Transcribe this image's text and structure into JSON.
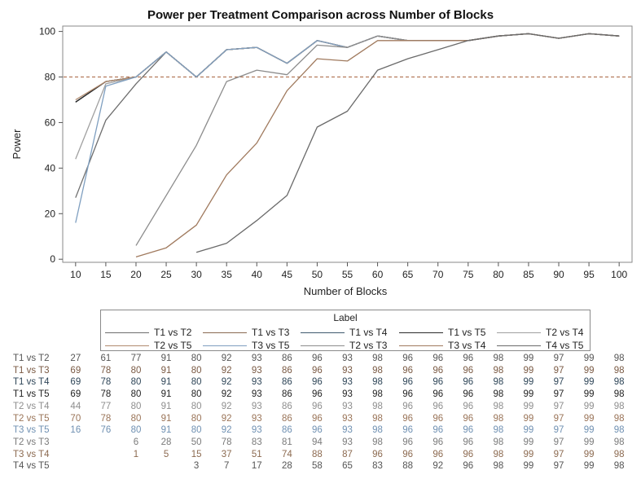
{
  "chart_data": {
    "type": "line",
    "title": "Power per Treatment Comparison across Number of Blocks",
    "xlabel": "Number of Blocks",
    "ylabel": "Power",
    "x": [
      10,
      15,
      20,
      25,
      30,
      35,
      40,
      45,
      50,
      55,
      60,
      65,
      70,
      75,
      80,
      85,
      90,
      95,
      100
    ],
    "xlim": [
      8,
      102
    ],
    "ylim": [
      -1,
      102
    ],
    "yticks": [
      0,
      20,
      40,
      60,
      80,
      100
    ],
    "reference_line": {
      "y": 80,
      "color": "#b47a5a",
      "style": "dashed"
    },
    "legend": {
      "title": "Label",
      "placement": "bottom"
    },
    "series": [
      {
        "name": "T1 vs T2",
        "color": "#6e6e6e",
        "values": [
          27,
          61,
          77,
          91,
          80,
          92,
          93,
          86,
          96,
          93,
          98,
          96,
          96,
          96,
          98,
          99,
          97,
          99,
          98
        ]
      },
      {
        "name": "T1 vs T3",
        "color": "#8a6a52",
        "values": [
          69,
          78,
          80,
          91,
          80,
          92,
          93,
          86,
          96,
          93,
          98,
          96,
          96,
          96,
          98,
          99,
          97,
          99,
          98
        ]
      },
      {
        "name": "T1 vs T4",
        "color": "#3f5a6e",
        "values": [
          69,
          78,
          80,
          91,
          80,
          92,
          93,
          86,
          96,
          93,
          98,
          96,
          96,
          96,
          98,
          99,
          97,
          99,
          98
        ]
      },
      {
        "name": "T1 vs T5",
        "color": "#2a2a2a",
        "values": [
          69,
          78,
          80,
          91,
          80,
          92,
          93,
          86,
          96,
          93,
          98,
          96,
          96,
          96,
          98,
          99,
          97,
          99,
          98
        ]
      },
      {
        "name": "T2 vs T4",
        "color": "#a0a0a0",
        "values": [
          44,
          77,
          80,
          91,
          80,
          92,
          93,
          86,
          96,
          93,
          98,
          96,
          96,
          96,
          98,
          99,
          97,
          99,
          98
        ]
      },
      {
        "name": "T2 vs T5",
        "color": "#b08a6e",
        "values": [
          70,
          78,
          80,
          91,
          80,
          92,
          93,
          86,
          96,
          93,
          98,
          96,
          96,
          96,
          98,
          99,
          97,
          99,
          98
        ]
      },
      {
        "name": "T3 vs T5",
        "color": "#7f9fc0",
        "values": [
          16,
          76,
          80,
          91,
          80,
          92,
          93,
          86,
          96,
          93,
          98,
          96,
          96,
          96,
          98,
          99,
          97,
          99,
          98
        ]
      },
      {
        "name": "T2 vs T3",
        "color": "#8c8c8c",
        "values": [
          null,
          null,
          6,
          28,
          50,
          78,
          83,
          81,
          94,
          93,
          98,
          96,
          96,
          96,
          98,
          99,
          97,
          99,
          98
        ]
      },
      {
        "name": "T3 vs T4",
        "color": "#a07a5e",
        "values": [
          null,
          null,
          1,
          5,
          15,
          37,
          51,
          74,
          88,
          87,
          96,
          96,
          96,
          96,
          98,
          99,
          97,
          99,
          98
        ]
      },
      {
        "name": "T4 vs T5",
        "color": "#6a6a6a",
        "values": [
          null,
          null,
          null,
          null,
          3,
          7,
          17,
          28,
          58,
          65,
          83,
          88,
          92,
          96,
          98,
          99,
          97,
          99,
          98
        ]
      }
    ]
  },
  "table": {
    "rows": [
      {
        "label": "T1 vs T2",
        "color": "#555555",
        "values": [
          "27",
          "61",
          "77",
          "91",
          "80",
          "92",
          "93",
          "86",
          "96",
          "93",
          "98",
          "96",
          "96",
          "96",
          "98",
          "99",
          "97",
          "99",
          "98"
        ]
      },
      {
        "label": "T1 vs T3",
        "color": "#7a5a44",
        "values": [
          "69",
          "78",
          "80",
          "91",
          "80",
          "92",
          "93",
          "86",
          "96",
          "93",
          "98",
          "96",
          "96",
          "96",
          "98",
          "99",
          "97",
          "99",
          "98"
        ]
      },
      {
        "label": "T1 vs T4",
        "color": "#2f4658",
        "values": [
          "69",
          "78",
          "80",
          "91",
          "80",
          "92",
          "93",
          "86",
          "96",
          "93",
          "98",
          "96",
          "96",
          "96",
          "98",
          "99",
          "97",
          "99",
          "98"
        ]
      },
      {
        "label": "T1 vs T5",
        "color": "#222222",
        "values": [
          "69",
          "78",
          "80",
          "91",
          "80",
          "92",
          "93",
          "86",
          "96",
          "93",
          "98",
          "96",
          "96",
          "96",
          "98",
          "99",
          "97",
          "99",
          "98"
        ]
      },
      {
        "label": "T2 vs T4",
        "color": "#8e8e8e",
        "values": [
          "44",
          "77",
          "80",
          "91",
          "80",
          "92",
          "93",
          "86",
          "96",
          "93",
          "98",
          "96",
          "96",
          "96",
          "98",
          "99",
          "97",
          "99",
          "98"
        ]
      },
      {
        "label": "T2 vs T5",
        "color": "#9a7458",
        "values": [
          "70",
          "78",
          "80",
          "91",
          "80",
          "92",
          "93",
          "86",
          "96",
          "93",
          "98",
          "96",
          "96",
          "96",
          "98",
          "99",
          "97",
          "99",
          "98"
        ]
      },
      {
        "label": "T3 vs T5",
        "color": "#6f90b2",
        "values": [
          "16",
          "76",
          "80",
          "91",
          "80",
          "92",
          "93",
          "86",
          "96",
          "93",
          "98",
          "96",
          "96",
          "96",
          "98",
          "99",
          "97",
          "99",
          "98"
        ]
      },
      {
        "label": "T2 vs T3",
        "color": "#7a7a7a",
        "values": [
          "",
          "",
          "6",
          "28",
          "50",
          "78",
          "83",
          "81",
          "94",
          "93",
          "98",
          "96",
          "96",
          "96",
          "98",
          "99",
          "97",
          "99",
          "98"
        ]
      },
      {
        "label": "T3 vs T4",
        "color": "#8c6a50",
        "values": [
          "",
          "",
          "1",
          "5",
          "15",
          "37",
          "51",
          "74",
          "88",
          "87",
          "96",
          "96",
          "96",
          "96",
          "98",
          "99",
          "97",
          "99",
          "98"
        ]
      },
      {
        "label": "T4 vs T5",
        "color": "#555555",
        "values": [
          "",
          "",
          "",
          "",
          "3",
          "7",
          "17",
          "28",
          "58",
          "65",
          "83",
          "88",
          "92",
          "96",
          "98",
          "99",
          "97",
          "99",
          "98"
        ]
      }
    ]
  }
}
